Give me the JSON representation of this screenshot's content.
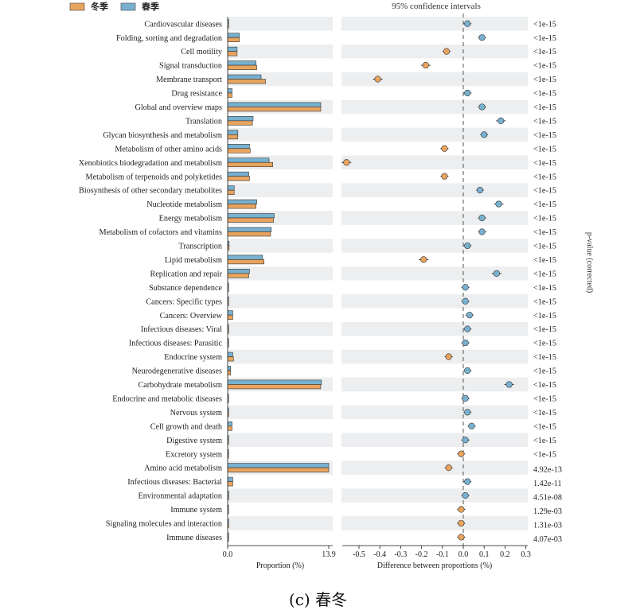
{
  "legend": [
    {
      "name": "冬季",
      "color": "#E8A35E"
    },
    {
      "name": "春季",
      "color": "#78B1D0"
    }
  ],
  "ci_title": "95% confidence intervals",
  "pvalue_axis_label": "p-value (corrected)",
  "caption": "(c) 春冬",
  "chart_data": [
    {
      "type": "bar",
      "orientation": "horizontal",
      "xlabel": "Proportion (%)",
      "xlim": [
        0,
        13.9
      ],
      "ticks": [
        "0.0",
        "13.9"
      ],
      "categories": [
        "Cardiovascular diseases",
        "Folding, sorting and degradation",
        "Cell motility",
        "Signal transduction",
        "Membrane transport",
        "Drug resistance",
        "Global and overview maps",
        "Translation",
        "Glycan biosynthesis and metabolism",
        "Metabolism of other amino acids",
        "Xenobiotics biodegradation and metabolism",
        "Metabolism of terpenoids and polyketides",
        "Biosynthesis of other secondary metabolites",
        "Nucleotide metabolism",
        "Energy metabolism",
        "Metabolism of cofactors and vitamins",
        "Transcription",
        "Lipid metabolism",
        "Replication and repair",
        "Substance dependence",
        "Cancers: Specific types",
        "Cancers: Overview",
        "Infectious diseases: Viral",
        "Infectious diseases: Parasitic",
        "Endocrine system",
        "Neurodegenerative diseases",
        "Carbohydrate metabolism",
        "Endocrine and metabolic diseases",
        "Nervous system",
        "Cell growth and death",
        "Digestive system",
        "Excretory system",
        "Amino acid metabolism",
        "Infectious diseases: Bacterial",
        "Environmental adaptation",
        "Immune system",
        "Signaling molecules and interaction",
        "Immune diseases"
      ],
      "series": [
        {
          "name": "春季",
          "values": [
            0.05,
            1.6,
            1.3,
            3.9,
            4.6,
            0.6,
            12.8,
            3.5,
            1.4,
            3.0,
            5.7,
            2.9,
            0.9,
            4.0,
            6.4,
            6.0,
            0.2,
            4.8,
            3.0,
            0.1,
            0.1,
            0.7,
            0.1,
            0.1,
            0.7,
            0.4,
            12.9,
            0.1,
            0.1,
            0.6,
            0.1,
            0.05,
            13.9,
            0.7,
            0.1,
            0.05,
            0.05,
            0.05
          ]
        },
        {
          "name": "冬季",
          "values": [
            0.05,
            1.6,
            1.3,
            4.0,
            5.2,
            0.6,
            12.8,
            3.4,
            1.4,
            3.1,
            6.2,
            3.0,
            0.9,
            3.9,
            6.3,
            5.9,
            0.2,
            5.0,
            2.9,
            0.1,
            0.1,
            0.7,
            0.1,
            0.1,
            0.8,
            0.4,
            12.8,
            0.1,
            0.1,
            0.6,
            0.1,
            0.05,
            13.9,
            0.7,
            0.1,
            0.05,
            0.05,
            0.05
          ]
        }
      ]
    },
    {
      "type": "scatter",
      "xlabel": "Difference between proportions (%)",
      "title": "95% confidence intervals",
      "xlim": [
        -0.6,
        0.3
      ],
      "ticks": [
        "-0.5",
        "-0.4",
        "-0.3",
        "-0.2",
        "-0.1",
        "0.0",
        "0.1",
        "0.2",
        "0.3"
      ],
      "differences": [
        0.02,
        0.09,
        -0.08,
        -0.18,
        -0.41,
        0.02,
        0.09,
        0.18,
        0.1,
        -0.09,
        -0.56,
        -0.09,
        0.08,
        0.17,
        0.09,
        0.09,
        0.02,
        -0.19,
        0.16,
        0.01,
        0.01,
        0.03,
        0.02,
        0.01,
        -0.07,
        0.02,
        0.22,
        0.01,
        0.02,
        0.04,
        0.01,
        -0.01,
        -0.07,
        0.02,
        0.01,
        -0.01,
        -0.01,
        -0.01
      ],
      "p_values": [
        "<1e-15",
        "<1e-15",
        "<1e-15",
        "<1e-15",
        "<1e-15",
        "<1e-15",
        "<1e-15",
        "<1e-15",
        "<1e-15",
        "<1e-15",
        "<1e-15",
        "<1e-15",
        "<1e-15",
        "<1e-15",
        "<1e-15",
        "<1e-15",
        "<1e-15",
        "<1e-15",
        "<1e-15",
        "<1e-15",
        "<1e-15",
        "<1e-15",
        "<1e-15",
        "<1e-15",
        "<1e-15",
        "<1e-15",
        "<1e-15",
        "<1e-15",
        "<1e-15",
        "<1e-15",
        "<1e-15",
        "<1e-15",
        "4.92e-13",
        "1.42e-11",
        "4.51e-08",
        "1.29e-03",
        "1.31e-03",
        "4.07e-03"
      ]
    }
  ]
}
